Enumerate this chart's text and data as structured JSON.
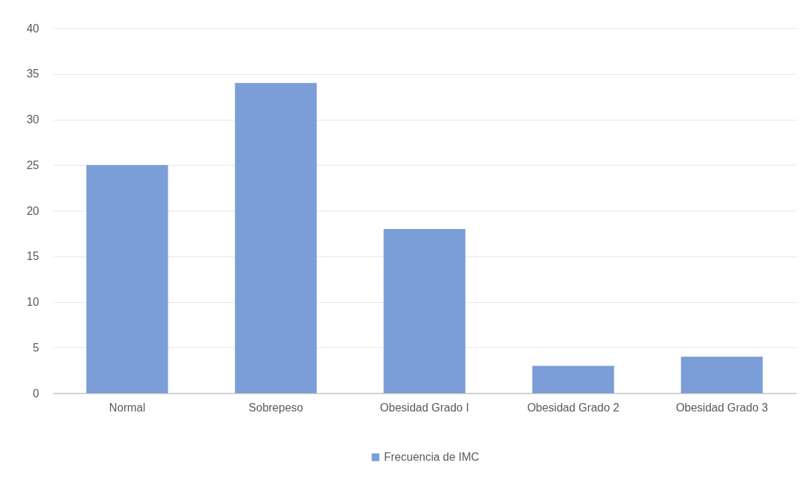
{
  "chart_data": {
    "type": "bar",
    "categories": [
      "Normal",
      "Sobrepeso",
      "Obesidad Grado I",
      "Obesidad Grado 2",
      "Obesidad Grado 3"
    ],
    "series": [
      {
        "name": "Frecuencia de IMC",
        "color": "#7b9ed8",
        "values": [
          25,
          34,
          18,
          3,
          4
        ]
      }
    ],
    "ylim": [
      0,
      40
    ],
    "yticks": [
      0,
      5,
      10,
      15,
      20,
      25,
      30,
      35,
      40
    ],
    "grid": "y",
    "legend": "bottom"
  }
}
